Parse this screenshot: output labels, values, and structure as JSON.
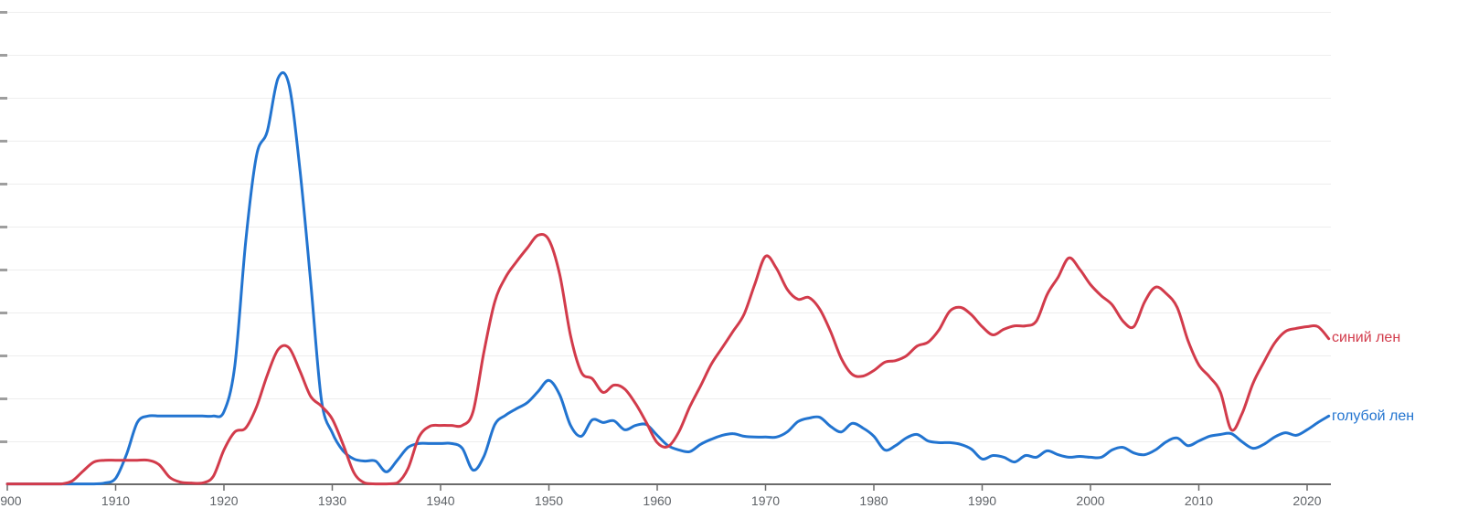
{
  "page": {
    "background": "#ffffff"
  },
  "legend": {
    "series1_label": "синий лен",
    "series2_label": "голубой лен"
  },
  "colors": {
    "red_line": "#d23b4b",
    "blue_line": "#2274d0",
    "axis_line": "#6b6b6b",
    "tick_label": "#5f6368",
    "y_tick_dash": "#9e9e9e",
    "gridline": "#eeeeee"
  },
  "chart_data": {
    "type": "line",
    "title": "",
    "xlabel": "",
    "ylabel": "",
    "x_tick_years": [
      1900,
      1910,
      1920,
      1930,
      1940,
      1950,
      1960,
      1970,
      1980,
      1990,
      2000,
      2010,
      2020
    ],
    "x_tick_labels": [
      "1900",
      "1910",
      "1920",
      "1930",
      "1940",
      "1950",
      "1960",
      "1970",
      "1980",
      "1990",
      "2000",
      "2010",
      "2020"
    ],
    "xlim": [
      1900,
      2022
    ],
    "ylim": [
      0,
      11.2
    ],
    "y_axis_labels_visible": false,
    "y_gridline_values": [
      1,
      2,
      3,
      4,
      5,
      6,
      7,
      8,
      9,
      10,
      11
    ],
    "grid": "horizontal-faint",
    "legend_position": "right-of-line-end",
    "y_unit": "unlabeled relative frequency (gridline = 1 unit)",
    "years": [
      1900,
      1901,
      1902,
      1903,
      1904,
      1905,
      1906,
      1907,
      1908,
      1909,
      1910,
      1911,
      1912,
      1913,
      1914,
      1915,
      1916,
      1917,
      1918,
      1919,
      1920,
      1921,
      1922,
      1923,
      1924,
      1925,
      1926,
      1927,
      1928,
      1929,
      1930,
      1931,
      1932,
      1933,
      1934,
      1935,
      1936,
      1937,
      1938,
      1939,
      1940,
      1941,
      1942,
      1943,
      1944,
      1945,
      1946,
      1947,
      1948,
      1949,
      1950,
      1951,
      1952,
      1953,
      1954,
      1955,
      1956,
      1957,
      1958,
      1959,
      1960,
      1961,
      1962,
      1963,
      1964,
      1965,
      1966,
      1967,
      1968,
      1969,
      1970,
      1971,
      1972,
      1973,
      1974,
      1975,
      1976,
      1977,
      1978,
      1979,
      1980,
      1981,
      1982,
      1983,
      1984,
      1985,
      1986,
      1987,
      1988,
      1989,
      1990,
      1991,
      1992,
      1993,
      1994,
      1995,
      1996,
      1997,
      1998,
      1999,
      2000,
      2001,
      2002,
      2003,
      2004,
      2005,
      2006,
      2007,
      2008,
      2009,
      2010,
      2011,
      2012,
      2013,
      2014,
      2015,
      2016,
      2017,
      2018,
      2019,
      2020,
      2021,
      2022
    ],
    "series": [
      {
        "name": "синий лен",
        "color": "#d23b4b",
        "values": [
          0.02,
          0.02,
          0.02,
          0.02,
          0.02,
          0.02,
          0.09,
          0.32,
          0.53,
          0.57,
          0.57,
          0.57,
          0.57,
          0.57,
          0.47,
          0.17,
          0.06,
          0.04,
          0.04,
          0.19,
          0.81,
          1.23,
          1.32,
          1.81,
          2.55,
          3.15,
          3.19,
          2.66,
          2.06,
          1.83,
          1.53,
          0.94,
          0.28,
          0.04,
          0.02,
          0.02,
          0.04,
          0.38,
          1.11,
          1.36,
          1.38,
          1.38,
          1.38,
          1.7,
          3.09,
          4.26,
          4.83,
          5.19,
          5.51,
          5.81,
          5.7,
          4.89,
          3.47,
          2.62,
          2.47,
          2.15,
          2.32,
          2.23,
          1.89,
          1.45,
          0.98,
          0.89,
          1.23,
          1.81,
          2.3,
          2.81,
          3.19,
          3.57,
          3.96,
          4.66,
          5.32,
          5.04,
          4.55,
          4.32,
          4.36,
          4.09,
          3.57,
          2.94,
          2.57,
          2.53,
          2.66,
          2.85,
          2.89,
          3.0,
          3.23,
          3.32,
          3.6,
          4.04,
          4.13,
          3.96,
          3.68,
          3.49,
          3.62,
          3.7,
          3.7,
          3.81,
          4.43,
          4.83,
          5.28,
          5.02,
          4.66,
          4.4,
          4.19,
          3.81,
          3.68,
          4.26,
          4.6,
          4.45,
          4.13,
          3.36,
          2.79,
          2.51,
          2.15,
          1.28,
          1.66,
          2.36,
          2.85,
          3.3,
          3.57,
          3.64,
          3.68,
          3.68,
          3.4
        ]
      },
      {
        "name": "голубой лен",
        "color": "#2274d0",
        "values": [
          0.02,
          0.02,
          0.02,
          0.02,
          0.02,
          0.02,
          0.02,
          0.02,
          0.02,
          0.04,
          0.15,
          0.7,
          1.45,
          1.6,
          1.6,
          1.6,
          1.6,
          1.6,
          1.6,
          1.6,
          1.7,
          2.77,
          5.64,
          7.66,
          8.23,
          9.47,
          9.32,
          7.38,
          4.74,
          1.98,
          1.21,
          0.79,
          0.6,
          0.55,
          0.55,
          0.3,
          0.57,
          0.87,
          0.96,
          0.96,
          0.96,
          0.96,
          0.85,
          0.34,
          0.66,
          1.4,
          1.62,
          1.77,
          1.91,
          2.17,
          2.43,
          2.09,
          1.38,
          1.13,
          1.51,
          1.45,
          1.49,
          1.28,
          1.38,
          1.4,
          1.15,
          0.91,
          0.81,
          0.77,
          0.94,
          1.06,
          1.15,
          1.19,
          1.13,
          1.11,
          1.11,
          1.11,
          1.23,
          1.47,
          1.55,
          1.57,
          1.36,
          1.23,
          1.43,
          1.32,
          1.13,
          0.81,
          0.91,
          1.09,
          1.17,
          1.02,
          0.98,
          0.98,
          0.94,
          0.83,
          0.6,
          0.68,
          0.64,
          0.53,
          0.68,
          0.64,
          0.79,
          0.7,
          0.64,
          0.66,
          0.64,
          0.64,
          0.81,
          0.87,
          0.74,
          0.7,
          0.81,
          1.0,
          1.09,
          0.91,
          1.02,
          1.13,
          1.17,
          1.19,
          1.0,
          0.85,
          0.94,
          1.11,
          1.21,
          1.15,
          1.28,
          1.45,
          1.6
        ]
      }
    ]
  }
}
